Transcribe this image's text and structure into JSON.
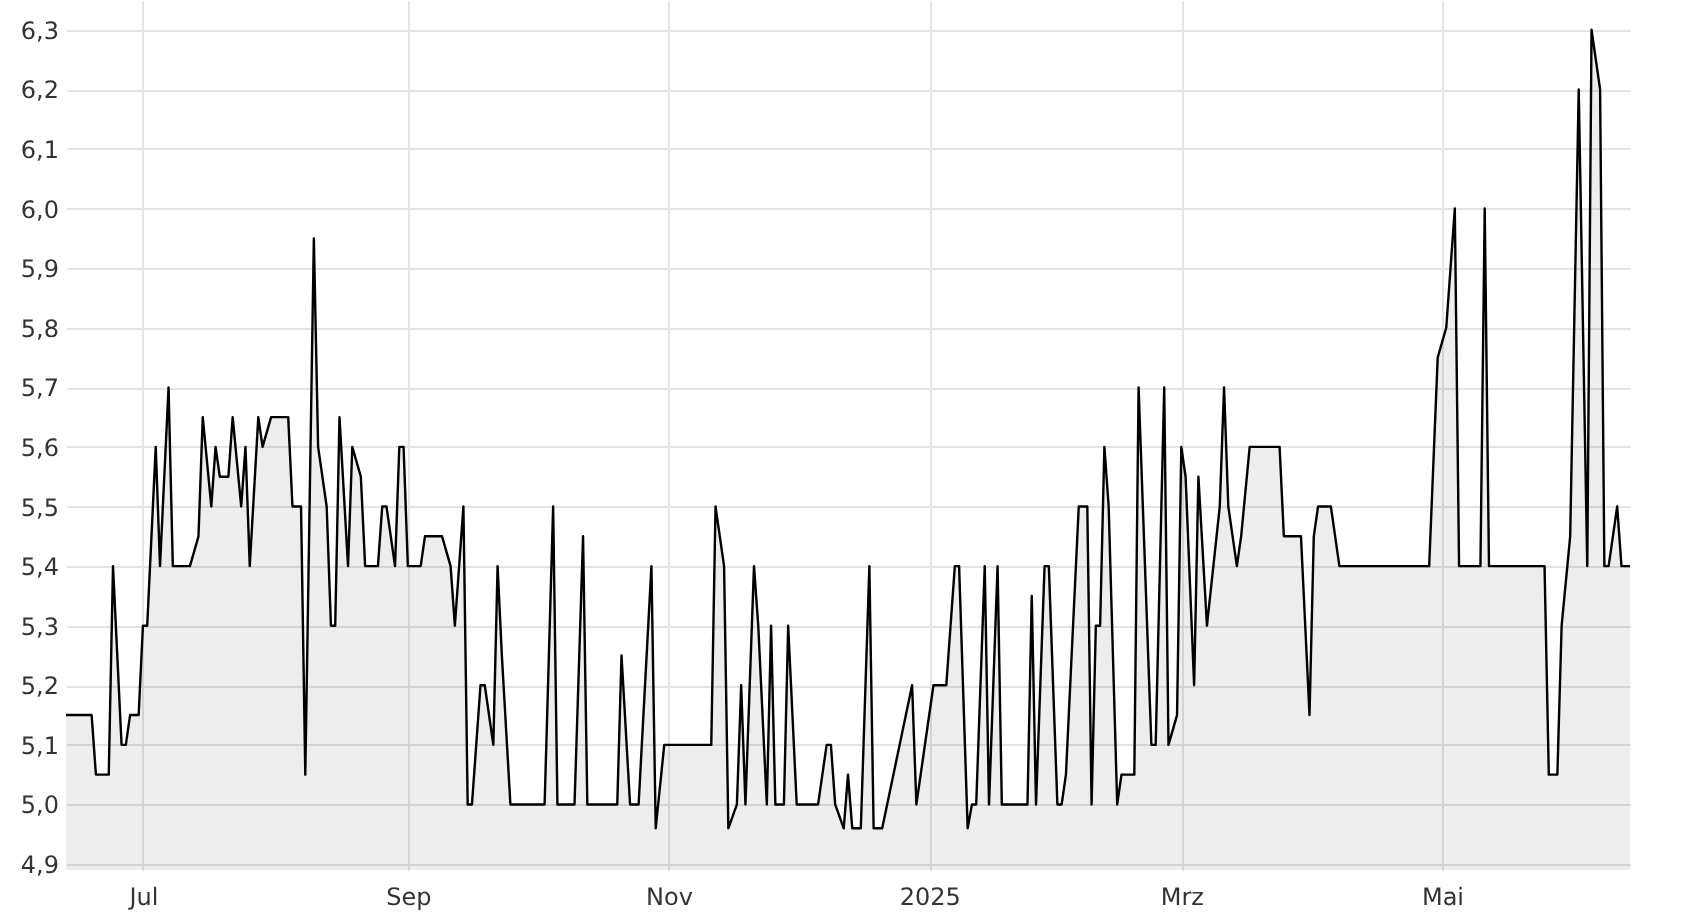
{
  "chart_data": {
    "type": "area",
    "x": [
      "2024-06-13",
      "2024-06-19",
      "2024-06-20",
      "2024-06-23",
      "2024-06-24",
      "2024-06-26",
      "2024-06-27",
      "2024-06-28",
      "2024-06-30",
      "2024-07-01",
      "2024-07-02",
      "2024-07-04",
      "2024-07-05",
      "2024-07-07",
      "2024-07-08",
      "2024-07-12",
      "2024-07-14",
      "2024-07-15",
      "2024-07-17",
      "2024-07-18",
      "2024-07-19",
      "2024-07-21",
      "2024-07-22",
      "2024-07-24",
      "2024-07-25",
      "2024-07-26",
      "2024-07-28",
      "2024-07-29",
      "2024-07-31",
      "2024-08-04",
      "2024-08-05",
      "2024-08-07",
      "2024-08-08",
      "2024-08-10",
      "2024-08-11",
      "2024-08-13",
      "2024-08-14",
      "2024-08-15",
      "2024-08-16",
      "2024-08-18",
      "2024-08-19",
      "2024-08-21",
      "2024-08-22",
      "2024-08-25",
      "2024-08-26",
      "2024-08-27",
      "2024-08-29",
      "2024-08-30",
      "2024-08-31",
      "2024-09-01",
      "2024-09-04",
      "2024-09-05",
      "2024-09-09",
      "2024-09-11",
      "2024-09-12",
      "2024-09-14",
      "2024-09-15",
      "2024-09-16",
      "2024-09-18",
      "2024-09-19",
      "2024-09-21",
      "2024-09-22",
      "2024-09-23",
      "2024-09-25",
      "2024-10-03",
      "2024-10-05",
      "2024-10-06",
      "2024-10-10",
      "2024-10-12",
      "2024-10-13",
      "2024-10-20",
      "2024-10-21",
      "2024-10-23",
      "2024-10-25",
      "2024-10-28",
      "2024-10-29",
      "2024-10-31",
      "2024-11-11",
      "2024-11-12",
      "2024-11-14",
      "2024-11-15",
      "2024-11-17",
      "2024-11-18",
      "2024-11-19",
      "2024-11-21",
      "2024-11-22",
      "2024-11-24",
      "2024-11-25",
      "2024-11-26",
      "2024-11-28",
      "2024-11-29",
      "2024-12-01",
      "2024-12-06",
      "2024-12-08",
      "2024-12-09",
      "2024-12-10",
      "2024-12-12",
      "2024-12-13",
      "2024-12-14",
      "2024-12-16",
      "2024-12-18",
      "2024-12-19",
      "2024-12-21",
      "2024-12-28",
      "2024-12-29",
      "2025-01-02",
      "2025-01-05",
      "2025-01-07",
      "2025-01-08",
      "2025-01-10",
      "2025-01-11",
      "2025-01-12",
      "2025-01-14",
      "2025-01-15",
      "2025-01-17",
      "2025-01-18",
      "2025-01-24",
      "2025-01-25",
      "2025-01-26",
      "2025-01-28",
      "2025-01-29",
      "2025-01-31",
      "2025-02-01",
      "2025-02-02",
      "2025-02-05",
      "2025-02-07",
      "2025-02-08",
      "2025-02-09",
      "2025-02-10",
      "2025-02-11",
      "2025-02-12",
      "2025-02-14",
      "2025-02-15",
      "2025-02-18",
      "2025-02-19",
      "2025-02-22",
      "2025-02-23",
      "2025-02-25",
      "2025-02-26",
      "2025-02-28",
      "2025-03-01",
      "2025-03-02",
      "2025-03-04",
      "2025-03-05",
      "2025-03-07",
      "2025-03-10",
      "2025-03-11",
      "2025-03-12",
      "2025-03-14",
      "2025-03-15",
      "2025-03-17",
      "2025-03-24",
      "2025-03-25",
      "2025-03-29",
      "2025-03-31",
      "2025-04-01",
      "2025-04-02",
      "2025-04-05",
      "2025-04-07",
      "2025-04-28",
      "2025-04-30",
      "2025-05-02",
      "2025-05-04",
      "2025-05-05",
      "2025-05-10",
      "2025-05-11",
      "2025-05-12",
      "2025-05-25",
      "2025-05-26",
      "2025-05-28",
      "2025-05-29",
      "2025-05-31",
      "2025-06-02",
      "2025-06-04",
      "2025-06-05",
      "2025-06-07",
      "2025-06-08",
      "2025-06-09",
      "2025-06-11",
      "2025-06-12",
      "2025-06-14"
    ],
    "series": [
      {
        "color": "#000000",
        "values": [
          5.15,
          5.15,
          5.05,
          5.05,
          5.4,
          5.1,
          5.1,
          5.15,
          5.15,
          5.3,
          5.3,
          5.6,
          5.4,
          5.7,
          5.4,
          5.4,
          5.45,
          5.65,
          5.5,
          5.6,
          5.55,
          5.55,
          5.65,
          5.5,
          5.6,
          5.4,
          5.65,
          5.6,
          5.65,
          5.65,
          5.5,
          5.5,
          5.05,
          5.95,
          5.6,
          5.5,
          5.3,
          5.3,
          5.65,
          5.4,
          5.6,
          5.55,
          5.4,
          5.4,
          5.5,
          5.5,
          5.4,
          5.6,
          5.6,
          5.4,
          5.4,
          5.45,
          5.45,
          5.4,
          5.3,
          5.5,
          5.0,
          5.0,
          5.2,
          5.2,
          5.1,
          5.4,
          5.25,
          5.0,
          5.0,
          5.5,
          5.0,
          5.0,
          5.45,
          5.0,
          5.0,
          5.25,
          5.0,
          5.0,
          5.4,
          4.96,
          5.1,
          5.1,
          5.5,
          5.4,
          4.96,
          5.0,
          5.2,
          5.0,
          5.4,
          5.3,
          5.0,
          5.3,
          5.0,
          5.0,
          5.3,
          5.0,
          5.0,
          5.1,
          5.1,
          5.0,
          4.96,
          5.05,
          4.96,
          4.96,
          5.4,
          4.96,
          4.96,
          5.2,
          5.0,
          5.2,
          5.2,
          5.4,
          5.4,
          4.96,
          5.0,
          5.0,
          5.4,
          5.0,
          5.4,
          5.0,
          5.0,
          5.35,
          5.0,
          5.4,
          5.4,
          5.0,
          5.0,
          5.05,
          5.5,
          5.5,
          5.0,
          5.3,
          5.3,
          5.6,
          5.5,
          5.0,
          5.05,
          5.05,
          5.7,
          5.1,
          5.1,
          5.7,
          5.1,
          5.15,
          5.6,
          5.55,
          5.2,
          5.55,
          5.3,
          5.5,
          5.7,
          5.5,
          5.4,
          5.45,
          5.6,
          5.6,
          5.45,
          5.45,
          5.15,
          5.45,
          5.5,
          5.5,
          5.4,
          5.4,
          5.75,
          5.8,
          6.0,
          5.4,
          5.4,
          6.0,
          5.4,
          5.4,
          5.05,
          5.05,
          5.3,
          5.45,
          6.2,
          5.4,
          6.3,
          6.2,
          5.4,
          5.4,
          5.5,
          5.4,
          5.4
        ]
      }
    ],
    "xlim": [
      "2024-06-13",
      "2025-06-14"
    ],
    "xticks": [
      {
        "value": "2024-07-01",
        "label": "Jul"
      },
      {
        "value": "2024-09-01",
        "label": "Sep"
      },
      {
        "value": "2024-11-01",
        "label": "Nov"
      },
      {
        "value": "2025-01-01",
        "label": "2025"
      },
      {
        "value": "2025-03-01",
        "label": "Mrz"
      },
      {
        "value": "2025-05-01",
        "label": "Mai"
      }
    ],
    "ylim": [
      4.89,
      6.35
    ],
    "yticks": [
      {
        "value": 4.9,
        "label": "4,9"
      },
      {
        "value": 5.0,
        "label": "5,0"
      },
      {
        "value": 5.1,
        "label": "5,1"
      },
      {
        "value": 5.2,
        "label": "5,2"
      },
      {
        "value": 5.3,
        "label": "5,3"
      },
      {
        "value": 5.4,
        "label": "5,4"
      },
      {
        "value": 5.5,
        "label": "5,5"
      },
      {
        "value": 5.6,
        "label": "5,6"
      },
      {
        "value": 5.7,
        "label": "5,7"
      },
      {
        "value": 5.8,
        "label": "5,8"
      },
      {
        "value": 5.9,
        "label": "5,9"
      },
      {
        "value": 6.0,
        "label": "6,0"
      },
      {
        "value": 6.1,
        "label": "6,1"
      },
      {
        "value": 6.2,
        "label": "6,2"
      },
      {
        "value": 6.3,
        "label": "6,3"
      }
    ],
    "grid": true
  }
}
